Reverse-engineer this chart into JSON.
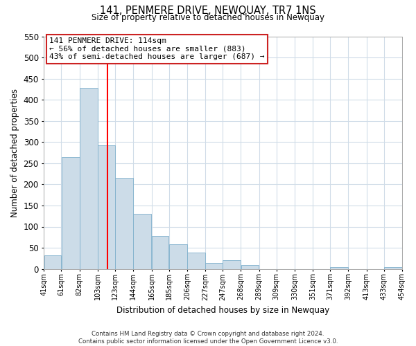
{
  "title": "141, PENMERE DRIVE, NEWQUAY, TR7 1NS",
  "subtitle": "Size of property relative to detached houses in Newquay",
  "xlabel": "Distribution of detached houses by size in Newquay",
  "ylabel": "Number of detached properties",
  "footer_line1": "Contains HM Land Registry data © Crown copyright and database right 2024.",
  "footer_line2": "Contains public sector information licensed under the Open Government Licence v3.0.",
  "bar_left_edges": [
    41,
    61,
    82,
    103,
    123,
    144,
    165,
    185,
    206,
    227,
    247,
    268,
    289,
    309,
    330,
    351,
    371,
    392,
    413,
    433
  ],
  "bar_widths": [
    20,
    21,
    21,
    20,
    21,
    21,
    20,
    21,
    21,
    20,
    21,
    21,
    20,
    21,
    21,
    20,
    21,
    21,
    20,
    21
  ],
  "bar_heights": [
    32,
    265,
    428,
    293,
    215,
    130,
    78,
    59,
    39,
    14,
    20,
    9,
    0,
    0,
    0,
    0,
    5,
    0,
    0,
    4
  ],
  "bar_color": "#ccdce8",
  "bar_edgecolor": "#7fb0cc",
  "tick_labels": [
    "41sqm",
    "61sqm",
    "82sqm",
    "103sqm",
    "123sqm",
    "144sqm",
    "165sqm",
    "185sqm",
    "206sqm",
    "227sqm",
    "247sqm",
    "268sqm",
    "289sqm",
    "309sqm",
    "330sqm",
    "351sqm",
    "371sqm",
    "392sqm",
    "413sqm",
    "433sqm",
    "454sqm"
  ],
  "ylim": [
    0,
    550
  ],
  "yticks": [
    0,
    50,
    100,
    150,
    200,
    250,
    300,
    350,
    400,
    450,
    500,
    550
  ],
  "red_line_x": 114,
  "annotation_title": "141 PENMERE DRIVE: 114sqm",
  "annotation_line1": "← 56% of detached houses are smaller (883)",
  "annotation_line2": "43% of semi-detached houses are larger (687) →",
  "background_color": "#ffffff",
  "grid_color": "#d0dce8"
}
